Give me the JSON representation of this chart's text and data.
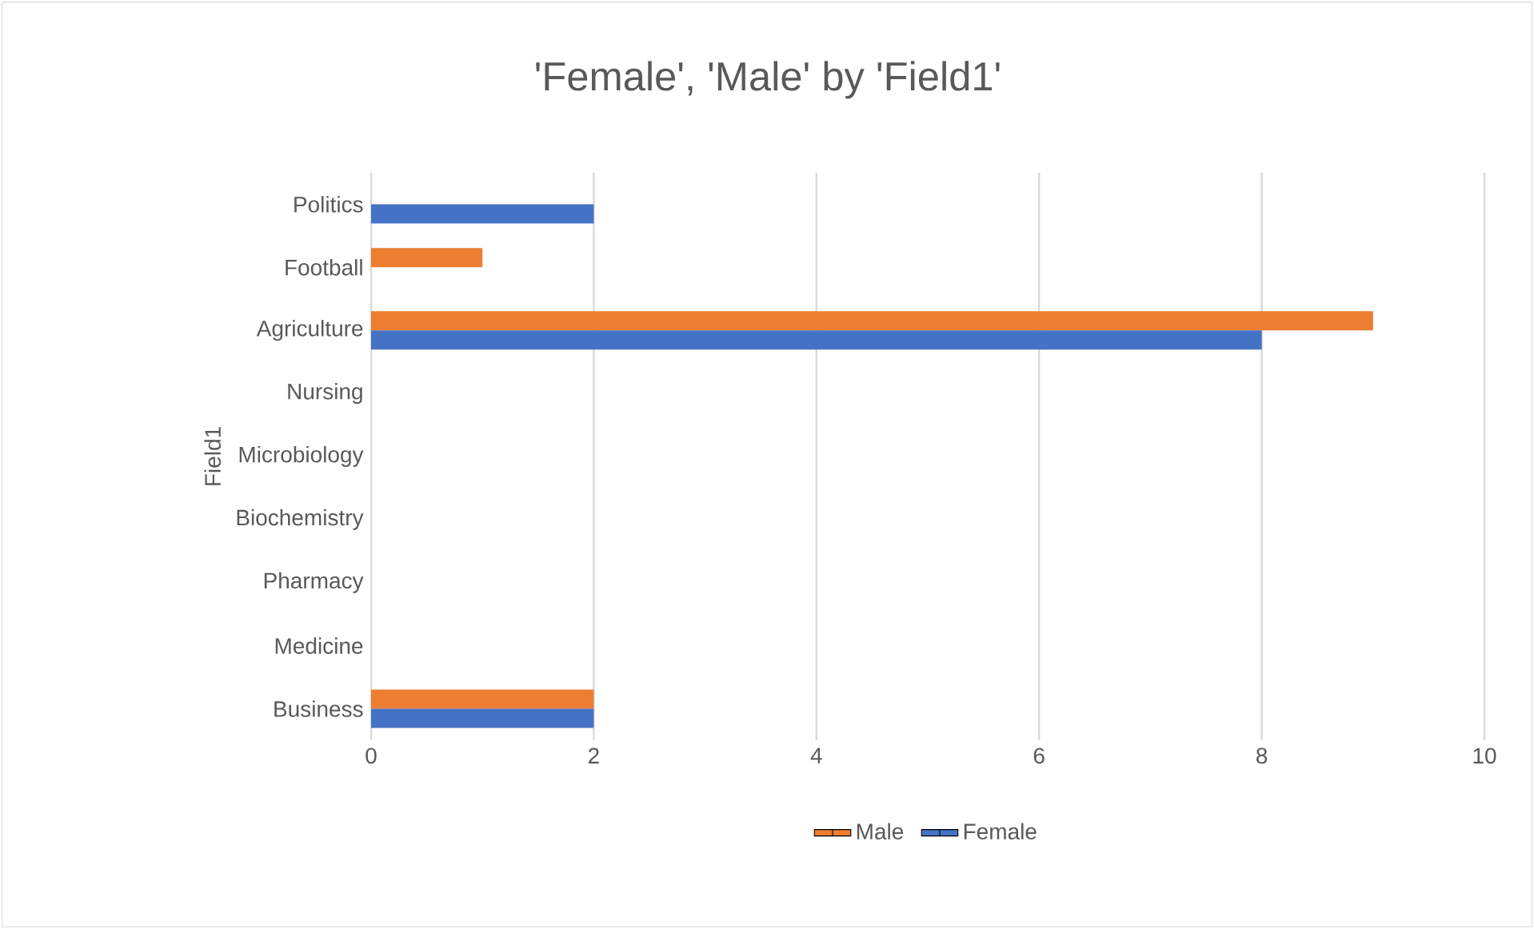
{
  "chart_data": {
    "type": "bar",
    "orientation": "horizontal",
    "title": "'Female', 'Male' by 'Field1'",
    "ylabel": "Field1",
    "categories": [
      "Politics",
      "Football",
      "Agriculture",
      "Nursing",
      "Microbiology",
      "Biochemistry",
      "Pharmacy",
      "Medicine",
      "Business"
    ],
    "series": [
      {
        "name": "Male",
        "color": "#ed7d31",
        "values": [
          0,
          1,
          9,
          0,
          0,
          0,
          0,
          0,
          2
        ]
      },
      {
        "name": "Female",
        "color": "#4472c4",
        "values": [
          2,
          0,
          8,
          0,
          0,
          0,
          0,
          0,
          2
        ]
      }
    ],
    "xlim": [
      0,
      10
    ],
    "xticks": [
      0,
      2,
      4,
      6,
      8,
      10
    ],
    "grid": "x",
    "legend": "bottom"
  }
}
